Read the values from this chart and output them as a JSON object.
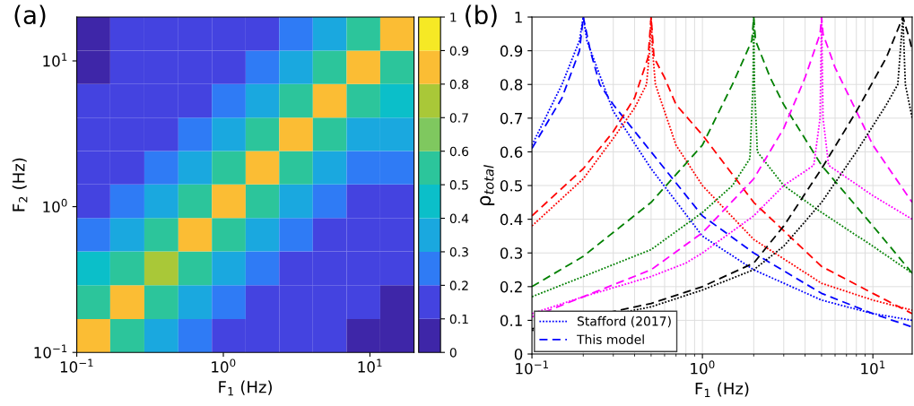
{
  "chart_data": [
    {
      "type": "heatmap",
      "title": "(a)",
      "xlabel": "F$_{1}$ (Hz)",
      "ylabel": "F$_{2}$ (Hz)",
      "log": "xy",
      "x": [
        0.13,
        0.22,
        0.38,
        0.64,
        1.09,
        1.85,
        3.13,
        5.32,
        9.04,
        15.3
      ],
      "y": [
        15.3,
        9.04,
        5.32,
        3.13,
        1.85,
        1.09,
        0.64,
        0.38,
        0.22,
        0.13
      ],
      "xlim": [
        0.1,
        20
      ],
      "ylim": [
        0.1,
        20
      ],
      "xticks": [
        {
          "value": 0.1,
          "label": "10$^{−1}$"
        },
        {
          "value": 1,
          "label": "10$^{0}$"
        },
        {
          "value": 10,
          "label": "10$^{1}$"
        }
      ],
      "yticks": [
        {
          "value": 0.1,
          "label": "10$^{−1}$"
        },
        {
          "value": 1,
          "label": "10$^{0}$"
        },
        {
          "value": 10,
          "label": "10$^{1}$"
        }
      ],
      "clim": [
        0,
        1
      ],
      "cticks": [
        0,
        0.1,
        0.2,
        0.3,
        0.4,
        0.5,
        0.6,
        0.7,
        0.8,
        0.9,
        1
      ],
      "cells": [
        [
          0.05,
          0.15,
          0.15,
          0.15,
          0.15,
          0.18,
          0.27,
          0.37,
          0.55,
          0.85
        ],
        [
          0.08,
          0.15,
          0.15,
          0.15,
          0.15,
          0.25,
          0.37,
          0.5,
          0.85,
          0.6
        ],
        [
          0.15,
          0.15,
          0.15,
          0.15,
          0.27,
          0.37,
          0.5,
          0.85,
          0.55,
          0.4
        ],
        [
          0.15,
          0.15,
          0.15,
          0.25,
          0.37,
          0.55,
          0.85,
          0.55,
          0.37,
          0.33
        ],
        [
          0.15,
          0.18,
          0.27,
          0.37,
          0.55,
          0.85,
          0.55,
          0.37,
          0.27,
          0.25
        ],
        [
          0.15,
          0.27,
          0.37,
          0.5,
          0.85,
          0.55,
          0.37,
          0.27,
          0.15,
          0.15
        ],
        [
          0.27,
          0.35,
          0.55,
          0.85,
          0.55,
          0.37,
          0.25,
          0.15,
          0.15,
          0.15
        ],
        [
          0.4,
          0.55,
          0.75,
          0.55,
          0.35,
          0.25,
          0.15,
          0.15,
          0.15,
          0.15
        ],
        [
          0.55,
          0.8,
          0.55,
          0.35,
          0.25,
          0.15,
          0.15,
          0.15,
          0.15,
          0.08
        ],
        [
          0.85,
          0.55,
          0.35,
          0.25,
          0.15,
          0.15,
          0.15,
          0.15,
          0.05,
          0.05
        ]
      ]
    },
    {
      "type": "line",
      "title": "(b)",
      "xlabel": "F$_{1}$ (Hz)",
      "ylabel": "ρ$_{total}$",
      "log": "x",
      "grid": true,
      "legend": "bottom left",
      "xlim": [
        0.1,
        17
      ],
      "ylim": [
        0,
        1
      ],
      "xticks": [
        {
          "value": 0.1,
          "label": "10$^{−1}$"
        },
        {
          "value": 1,
          "label": "10$^{0}$"
        },
        {
          "value": 10,
          "label": "10$^{1}$"
        }
      ],
      "yticks": [
        0,
        0.1,
        0.2,
        0.3,
        0.4,
        0.5,
        0.6,
        0.7,
        0.8,
        0.9,
        1
      ],
      "series": [
        {
          "name": "Stafford (2017)",
          "color": "#0000ff",
          "line_style": "dotted",
          "x": [
            0.1,
            0.15,
            0.19,
            0.2,
            0.21,
            0.3,
            0.35,
            0.5,
            1,
            2,
            5,
            10,
            17
          ],
          "values": [
            0.62,
            0.8,
            0.93,
            1.0,
            0.93,
            0.72,
            0.67,
            0.55,
            0.35,
            0.25,
            0.16,
            0.12,
            0.1
          ]
        },
        {
          "name": "This model",
          "color": "#0000ff",
          "line_style": "dashed",
          "x": [
            0.1,
            0.15,
            0.19,
            0.2,
            0.22,
            0.25,
            0.3,
            0.5,
            1,
            2,
            5,
            10,
            17
          ],
          "values": [
            0.61,
            0.76,
            0.9,
            1.0,
            0.9,
            0.8,
            0.74,
            0.6,
            0.41,
            0.3,
            0.18,
            0.12,
            0.08
          ]
        },
        {
          "color": "#ff0000",
          "line_style": "dotted",
          "x": [
            0.1,
            0.2,
            0.3,
            0.4,
            0.47,
            0.49,
            0.5,
            0.51,
            0.53,
            0.7,
            1,
            2,
            5,
            10,
            17
          ],
          "values": [
            0.38,
            0.52,
            0.64,
            0.73,
            0.8,
            0.9,
            1.0,
            0.9,
            0.8,
            0.62,
            0.5,
            0.34,
            0.21,
            0.16,
            0.13
          ]
        },
        {
          "color": "#ff0000",
          "line_style": "dashed",
          "x": [
            0.1,
            0.2,
            0.3,
            0.4,
            0.48,
            0.5,
            0.52,
            0.6,
            0.7,
            1,
            2,
            5,
            10,
            17
          ],
          "values": [
            0.41,
            0.55,
            0.66,
            0.76,
            0.88,
            1.0,
            0.88,
            0.82,
            0.74,
            0.65,
            0.45,
            0.26,
            0.18,
            0.12
          ]
        },
        {
          "color": "#008000",
          "line_style": "dotted",
          "x": [
            0.1,
            0.2,
            0.5,
            1,
            1.5,
            1.9,
            1.98,
            2,
            2.02,
            2.1,
            3,
            5,
            10,
            17
          ],
          "values": [
            0.17,
            0.23,
            0.31,
            0.42,
            0.5,
            0.58,
            0.8,
            1.0,
            0.8,
            0.6,
            0.5,
            0.42,
            0.32,
            0.24
          ]
        },
        {
          "color": "#008000",
          "line_style": "dashed",
          "x": [
            0.1,
            0.2,
            0.5,
            1,
            1.5,
            1.95,
            2,
            2.05,
            2.5,
            3,
            5,
            10,
            17
          ],
          "values": [
            0.2,
            0.29,
            0.45,
            0.62,
            0.8,
            0.93,
            1.0,
            0.93,
            0.82,
            0.74,
            0.56,
            0.38,
            0.24
          ]
        },
        {
          "color": "#ff00ff",
          "line_style": "dotted",
          "x": [
            0.1,
            0.2,
            0.5,
            0.8,
            1,
            2,
            3,
            4.5,
            4.9,
            5,
            5.1,
            5.5,
            10,
            17
          ],
          "values": [
            0.12,
            0.17,
            0.23,
            0.27,
            0.3,
            0.41,
            0.5,
            0.56,
            0.7,
            1.0,
            0.7,
            0.56,
            0.47,
            0.4
          ]
        },
        {
          "color": "#ff00ff",
          "line_style": "dashed",
          "x": [
            0.1,
            0.2,
            0.5,
            1,
            2,
            3,
            4,
            4.9,
            5,
            5.1,
            6,
            10,
            17
          ],
          "values": [
            0.11,
            0.17,
            0.25,
            0.36,
            0.52,
            0.67,
            0.82,
            0.95,
            1.0,
            0.95,
            0.85,
            0.62,
            0.45
          ]
        },
        {
          "color": "#000000",
          "line_style": "dotted",
          "x": [
            0.1,
            0.5,
            1,
            2,
            3,
            5,
            8,
            12,
            14,
            15,
            15.5,
            17
          ],
          "values": [
            0.07,
            0.14,
            0.19,
            0.25,
            0.32,
            0.45,
            0.6,
            0.74,
            0.8,
            1.0,
            0.8,
            0.7
          ]
        },
        {
          "color": "#000000",
          "line_style": "dashed",
          "x": [
            0.1,
            0.5,
            1,
            2,
            3,
            5,
            8,
            12,
            15,
            16.5,
            17
          ],
          "values": [
            0.075,
            0.15,
            0.2,
            0.27,
            0.38,
            0.55,
            0.72,
            0.88,
            1.0,
            0.93,
            0.9
          ]
        }
      ]
    }
  ]
}
